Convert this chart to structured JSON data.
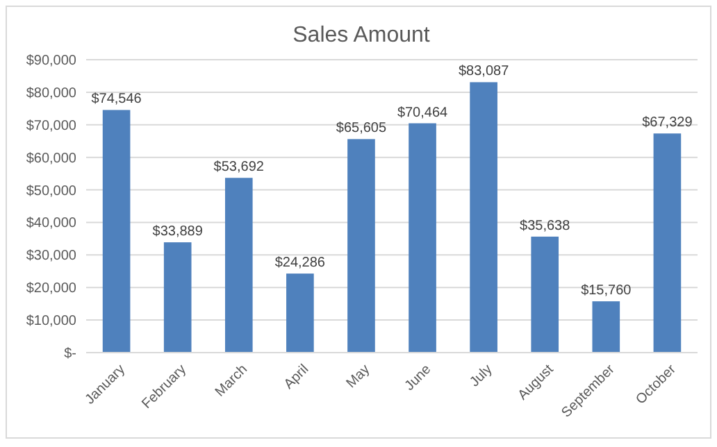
{
  "chart_data": {
    "type": "bar",
    "title": "Sales Amount",
    "categories": [
      "January",
      "February",
      "March",
      "April",
      "May",
      "June",
      "July",
      "August",
      "September",
      "October"
    ],
    "values": [
      74546,
      33889,
      53692,
      24286,
      65605,
      70464,
      83087,
      35638,
      15760,
      67329
    ],
    "value_labels": [
      "$74,546",
      "$33,889",
      "$53,692",
      "$24,286",
      "$65,605",
      "$70,464",
      "$83,087",
      "$35,638",
      "$15,760",
      "$67,329"
    ],
    "color": "#4f81bd",
    "ylim": [
      0,
      90000
    ],
    "yticks": [
      {
        "value": 0,
        "label": "$-"
      },
      {
        "value": 10000,
        "label": "$10,000"
      },
      {
        "value": 20000,
        "label": "$20,000"
      },
      {
        "value": 30000,
        "label": "$30,000"
      },
      {
        "value": 40000,
        "label": "$40,000"
      },
      {
        "value": 50000,
        "label": "$50,000"
      },
      {
        "value": 60000,
        "label": "$60,000"
      },
      {
        "value": 70000,
        "label": "$70,000"
      },
      {
        "value": 80000,
        "label": "$80,000"
      },
      {
        "value": 90000,
        "label": "$90,000"
      }
    ],
    "grid": "y"
  }
}
